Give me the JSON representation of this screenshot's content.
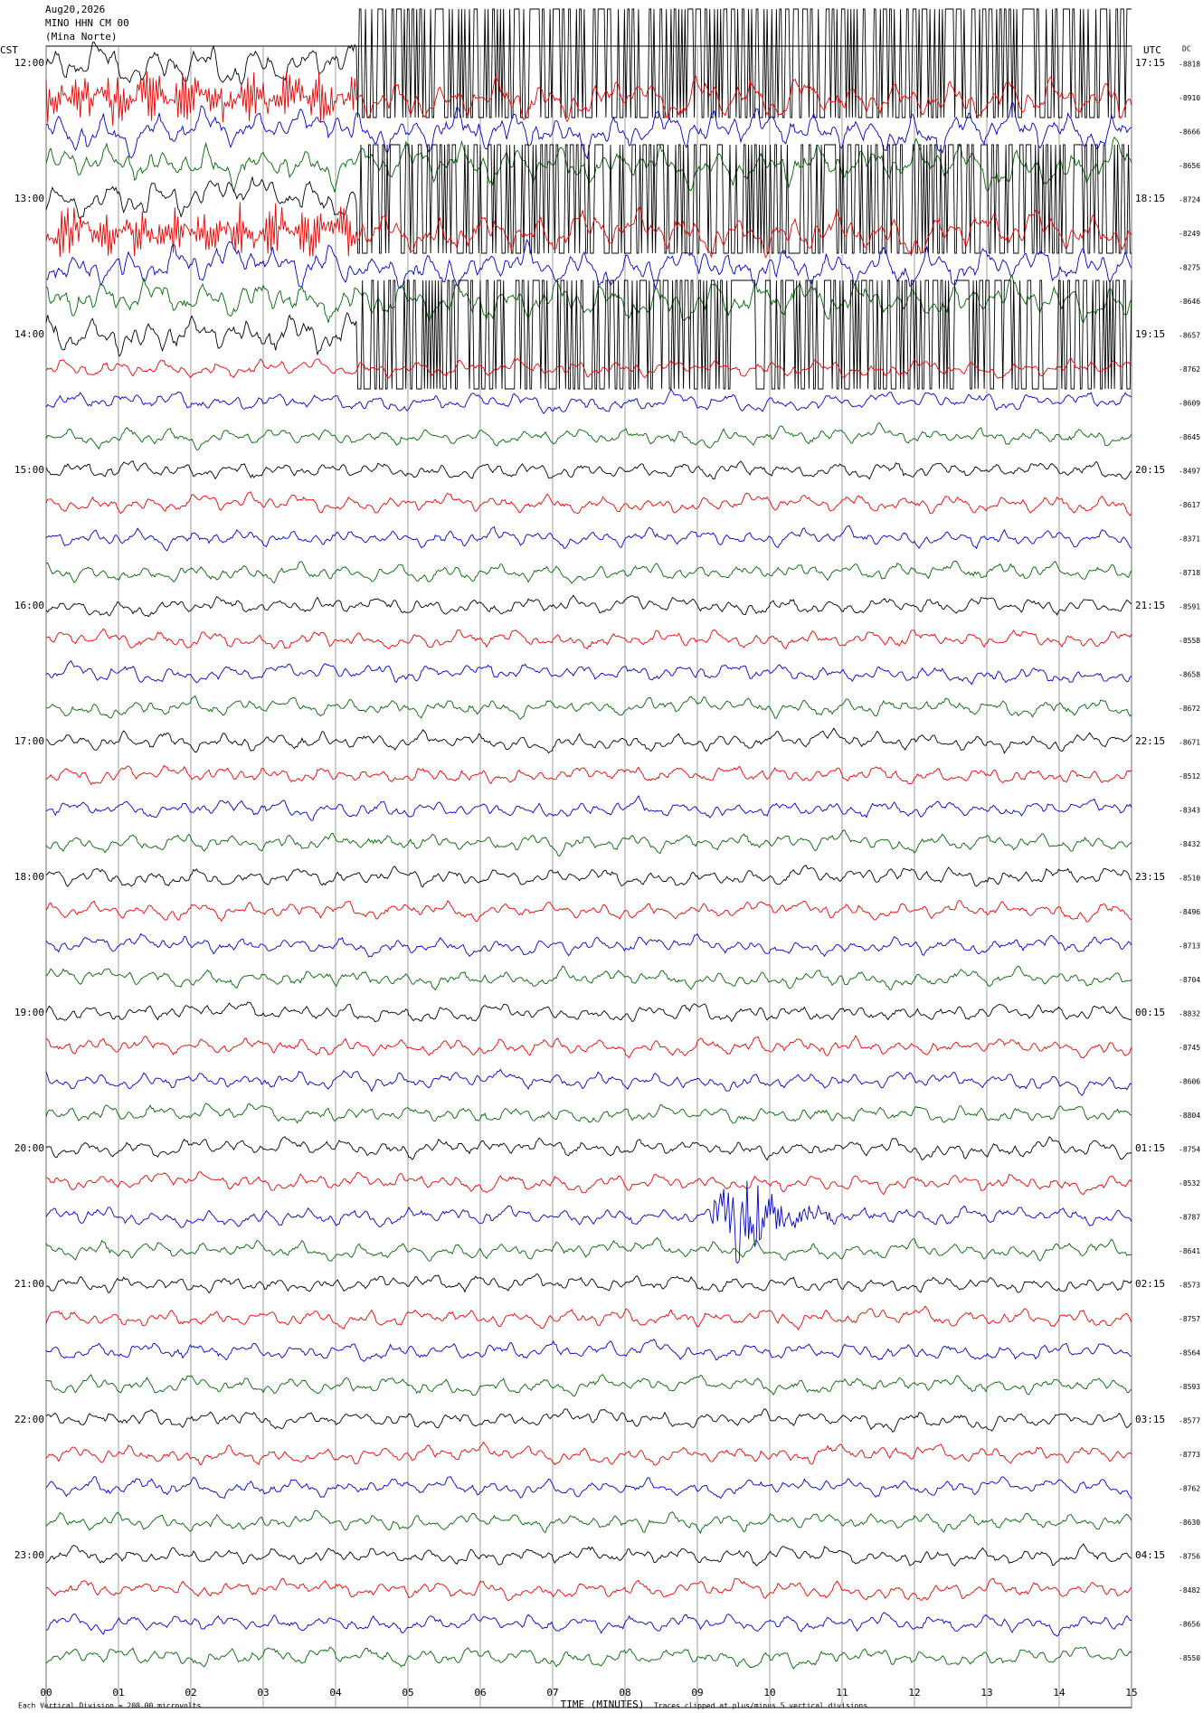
{
  "header": {
    "date": "Aug20,2026",
    "station": "MINO HHN CM 00",
    "location": "(Mina Norte)"
  },
  "left_zone": "CST",
  "right_zone": "UTC",
  "dc_heading": "DC",
  "left_times": [
    "12:00",
    "13:00",
    "14:00",
    "15:00",
    "16:00",
    "17:00",
    "18:00",
    "19:00",
    "20:00",
    "21:00",
    "22:00",
    "23:00"
  ],
  "right_times": [
    "17:15",
    "18:15",
    "19:15",
    "20:15",
    "21:15",
    "22:15",
    "23:15",
    "00:15",
    "01:15",
    "02:15",
    "03:15",
    "04:15"
  ],
  "dc_values": [
    "-8818",
    "-8910",
    "-8666",
    "-8656",
    "-8724",
    "-8249",
    "-8275",
    "-8646",
    "-8657",
    "-8762",
    "-8609",
    "-8645",
    "-8497",
    "-8617",
    "-8371",
    "-8718",
    "-8591",
    "-8558",
    "-8658",
    "-8672",
    "-8671",
    "-8512",
    "-8343",
    "-8432",
    "-8510",
    "-8496",
    "-8713",
    "-8704",
    "-8832",
    "-8745",
    "-8606",
    "-8804",
    "-8754",
    "-8532",
    "-8787",
    "-8641",
    "-8573",
    "-8757",
    "-8564",
    "-8593",
    "-8577",
    "-8773",
    "-8762",
    "-8630",
    "-8756",
    "-8482",
    "-8656",
    "-8550"
  ],
  "x_axis": {
    "label": "TIME (MINUTES)",
    "tick_labels": [
      "00",
      "01",
      "02",
      "03",
      "04",
      "05",
      "06",
      "07",
      "08",
      "09",
      "10",
      "11",
      "12",
      "13",
      "14",
      "15"
    ]
  },
  "footer": {
    "scale": "Each Vertical Division =  200.00 microvolts",
    "clip": "Traces clipped at plus/minus 5 vertical divisions"
  }
}
